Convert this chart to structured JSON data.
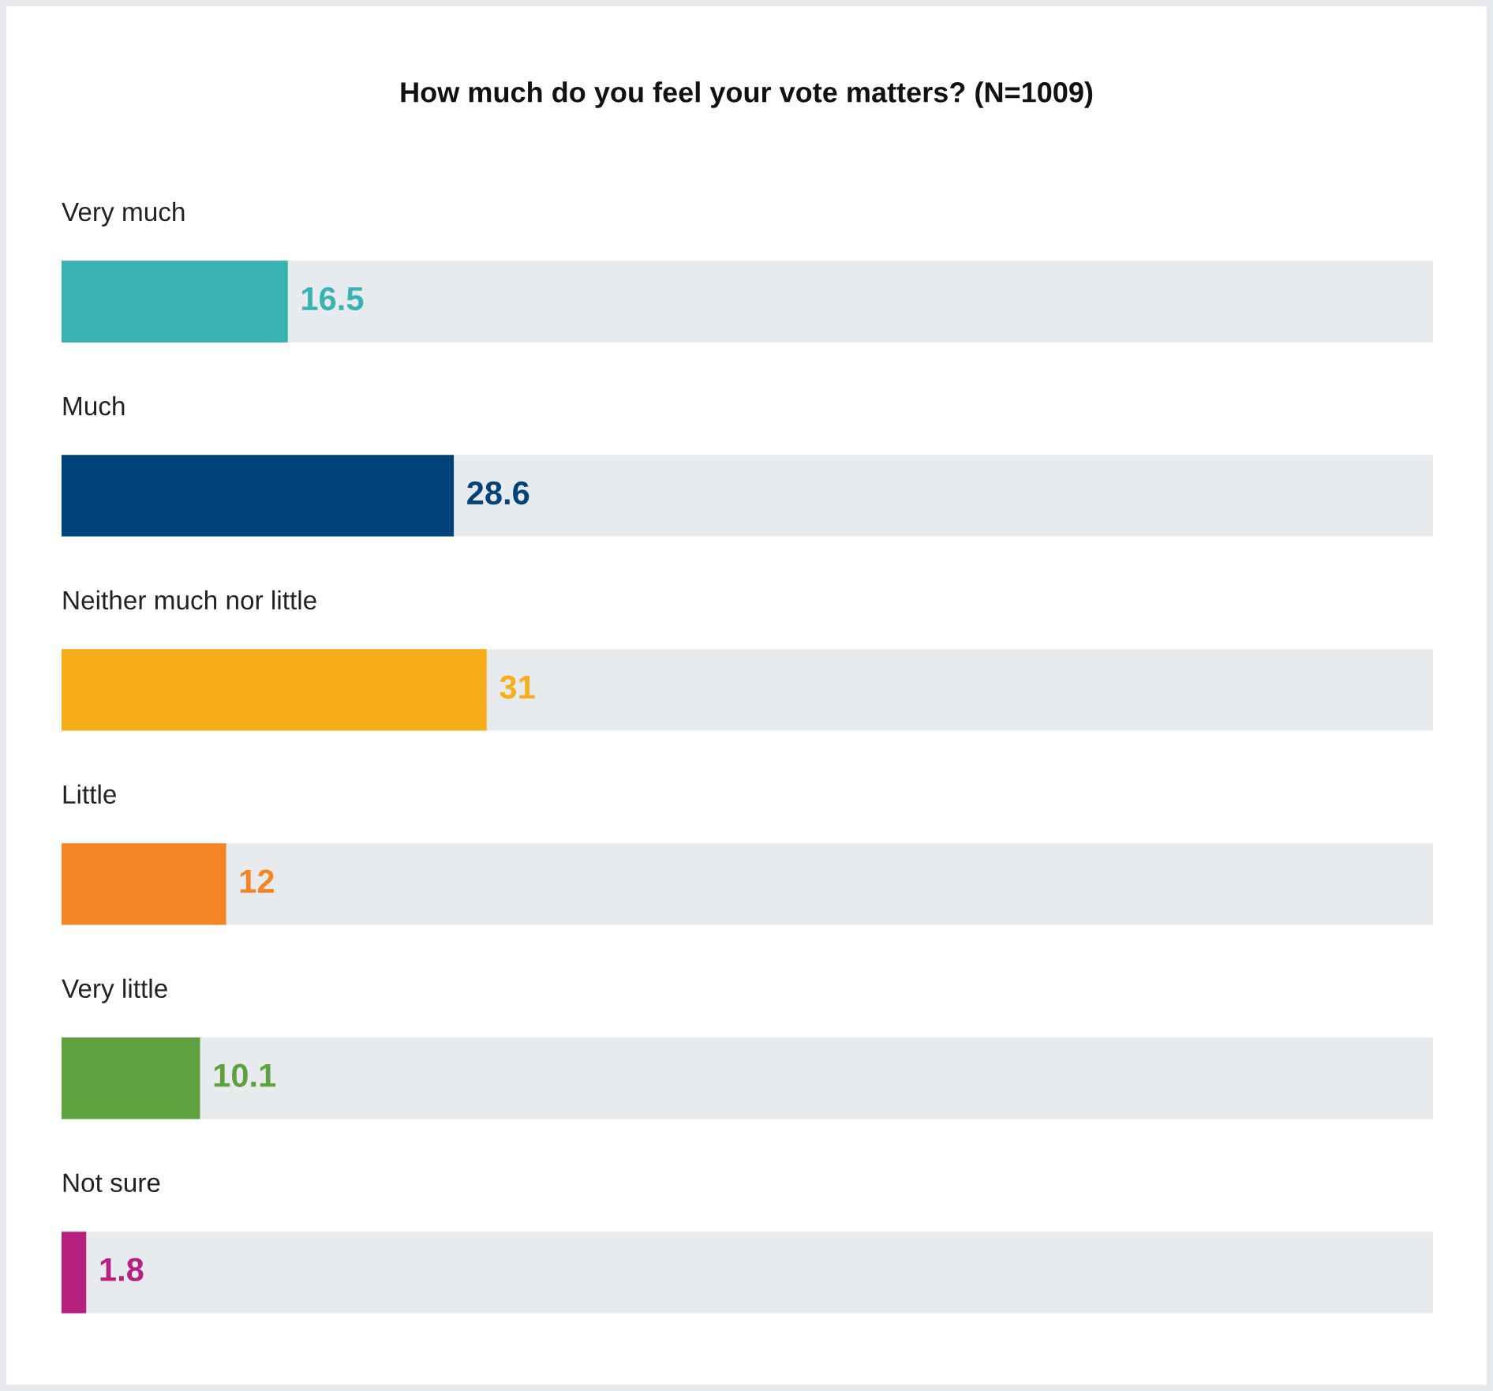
{
  "chart_data": {
    "type": "bar",
    "orientation": "horizontal",
    "title": "How much do you feel your vote matters? (N=1009)",
    "categories": [
      "Very much",
      "Much",
      "Neither much nor little",
      "Little",
      "Very little",
      "Not sure"
    ],
    "values": [
      16.5,
      28.6,
      31,
      12,
      10.1,
      1.8
    ],
    "colors": [
      "#38b3b1",
      "#00427a",
      "#f8ad1b",
      "#f58426",
      "#5ea13f",
      "#b8207f"
    ],
    "xlim": [
      0,
      100
    ],
    "tick_labels": "y",
    "data_labels": true
  }
}
